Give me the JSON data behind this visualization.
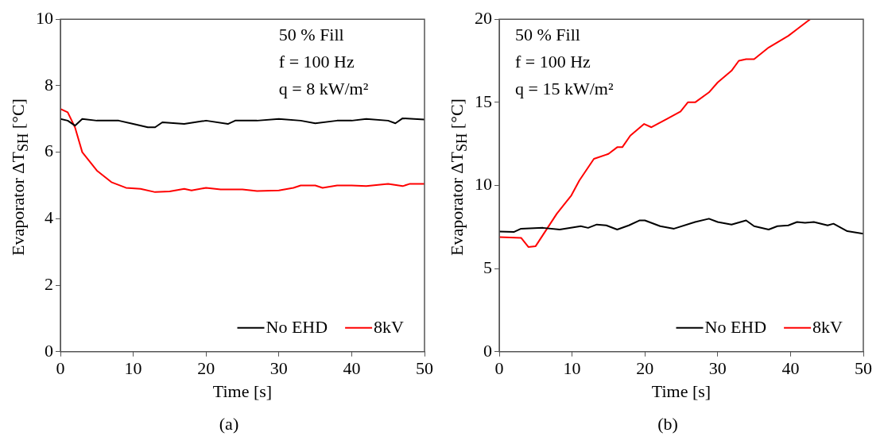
{
  "chart_data": [
    {
      "type": "line",
      "title": "(a)",
      "xlabel": "Time [s]",
      "ylabel": "Evaporator ΔT$_{SH}$ [°C]",
      "annotations": [
        "50 % Fill",
        "f = 100 Hz",
        "q = 8 kW/m²"
      ],
      "xlim": [
        0,
        50
      ],
      "xticks": [
        0,
        10,
        20,
        30,
        40,
        50
      ],
      "ylim": [
        0,
        10
      ],
      "yticks": [
        0,
        2,
        4,
        6,
        8,
        10
      ],
      "grid": false,
      "legend": "bottom right",
      "marker": "none",
      "line_style": "solid",
      "series": [
        {
          "name": "No EHD",
          "color": "#000000",
          "x": [
            0,
            1,
            2,
            3,
            5,
            8,
            10,
            12,
            13,
            14,
            17,
            20,
            23,
            24,
            27,
            30,
            33,
            35,
            38,
            40,
            42,
            45,
            46,
            47,
            50
          ],
          "values": [
            7.0,
            6.95,
            6.8,
            7.0,
            6.95,
            6.95,
            6.85,
            6.75,
            6.75,
            6.9,
            6.85,
            6.95,
            6.85,
            6.95,
            6.95,
            7.0,
            6.95,
            6.87,
            6.95,
            6.95,
            7.0,
            6.95,
            6.87,
            7.02,
            6.98
          ]
        },
        {
          "name": "8kV",
          "color": "#ff0000",
          "x": [
            0,
            1,
            2,
            3,
            5,
            7,
            9,
            11,
            13,
            15,
            17,
            18,
            20,
            22,
            25,
            27,
            30,
            32,
            33,
            35,
            36,
            38,
            40,
            42,
            45,
            47,
            48,
            50
          ],
          "values": [
            7.3,
            7.2,
            6.75,
            6.0,
            5.45,
            5.1,
            4.93,
            4.9,
            4.8,
            4.82,
            4.9,
            4.85,
            4.93,
            4.88,
            4.88,
            4.83,
            4.85,
            4.93,
            5.0,
            5.0,
            4.93,
            5.0,
            5.0,
            4.98,
            5.05,
            4.98,
            5.05,
            5.05
          ]
        }
      ]
    },
    {
      "type": "line",
      "title": "(b)",
      "xlabel": "Time [s]",
      "ylabel": "Evaporator ΔT$_{SH}$ [°C]",
      "annotations": [
        "50 % Fill",
        "f = 100 Hz",
        "q = 15 kW/m²"
      ],
      "xlim": [
        0,
        50
      ],
      "xticks": [
        0,
        10,
        20,
        30,
        40,
        50
      ],
      "ylim": [
        0,
        20
      ],
      "yticks": [
        0,
        5,
        10,
        15,
        20
      ],
      "grid": false,
      "legend": "bottom right",
      "marker": "none",
      "line_style": "solid",
      "series": [
        {
          "name": "No EHD",
          "color": "#000000",
          "x": [
            0,
            2,
            3,
            6,
            8.3,
            11.2,
            12.2,
            13.4,
            14.7,
            16.2,
            17.8,
            19.3,
            20,
            22.1,
            24,
            26.9,
            28.8,
            30,
            31.9,
            33.9,
            35,
            37,
            38.2,
            39.7,
            40.9,
            42,
            43.2,
            45.1,
            45.9,
            47.8,
            50
          ],
          "values": [
            7.23,
            7.2,
            7.4,
            7.45,
            7.35,
            7.55,
            7.45,
            7.65,
            7.6,
            7.35,
            7.6,
            7.9,
            7.9,
            7.55,
            7.4,
            7.8,
            8.0,
            7.8,
            7.65,
            7.9,
            7.55,
            7.35,
            7.55,
            7.6,
            7.8,
            7.75,
            7.8,
            7.6,
            7.7,
            7.25,
            7.1
          ]
        },
        {
          "name": "8kV",
          "color": "#ff0000",
          "x": [
            0,
            3,
            4,
            5,
            7.9,
            9.9,
            11,
            13,
            15,
            16.2,
            16.9,
            18,
            19.9,
            20.9,
            23,
            24.9,
            25.9,
            26.9,
            28.8,
            30,
            31.9,
            32.9,
            33.9,
            35,
            37,
            39.7,
            40.9,
            42.7
          ],
          "values": [
            6.9,
            6.85,
            6.3,
            6.35,
            8.3,
            9.4,
            10.3,
            11.6,
            11.9,
            12.3,
            12.3,
            13.0,
            13.7,
            13.5,
            14.0,
            14.45,
            15.0,
            15.0,
            15.6,
            16.2,
            16.9,
            17.5,
            17.6,
            17.6,
            18.3,
            19.0,
            19.4,
            20
          ]
        }
      ]
    }
  ]
}
